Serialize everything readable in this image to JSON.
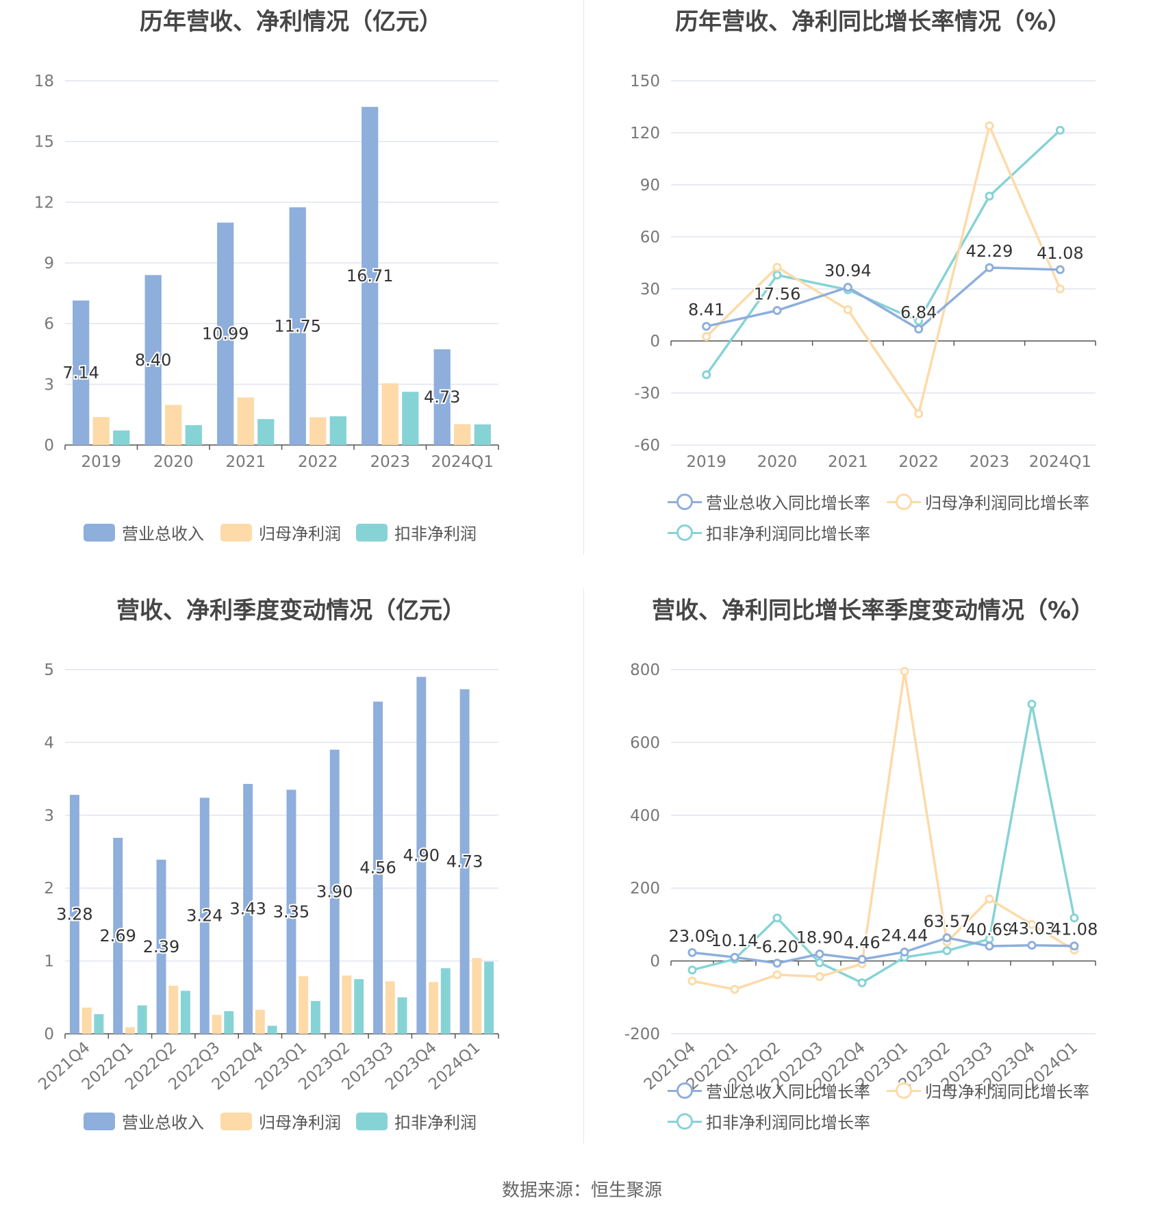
{
  "chart_data": [
    {
      "type": "bar",
      "title": "历年营收、净利情况（亿元）",
      "categories": [
        "2019",
        "2020",
        "2021",
        "2022",
        "2023",
        "2024Q1"
      ],
      "series": [
        {
          "name": "营业总收入",
          "color": "#8eaedc",
          "values": [
            7.14,
            8.4,
            10.99,
            11.75,
            16.71,
            4.73
          ],
          "labels": [
            "7.14",
            "8.40",
            "10.99",
            "11.75",
            "16.71",
            "4.73"
          ]
        },
        {
          "name": "归母净利润",
          "color": "#fddaa8",
          "values": [
            1.38,
            1.98,
            2.35,
            1.37,
            3.05,
            1.03
          ]
        },
        {
          "name": "扣非净利润",
          "color": "#86d3d6",
          "values": [
            0.72,
            0.98,
            1.28,
            1.42,
            2.63,
            1.02
          ]
        }
      ],
      "ylim": [
        0,
        18
      ],
      "yticks": [
        0,
        3,
        6,
        9,
        12,
        15,
        18
      ],
      "grid": true,
      "legend": "bottom"
    },
    {
      "type": "line",
      "title": "历年营收、净利同比增长率情况（%）",
      "categories": [
        "2019",
        "2020",
        "2021",
        "2022",
        "2023",
        "2024Q1"
      ],
      "series": [
        {
          "name": "营业总收入同比增长率",
          "color": "#8eaedc",
          "values": [
            8.41,
            17.56,
            30.94,
            6.84,
            42.29,
            41.08
          ],
          "labels": [
            "8.41",
            "17.56",
            "30.94",
            "6.84",
            "42.29",
            "41.08"
          ]
        },
        {
          "name": "归母净利润同比增长率",
          "color": "#fddaa8",
          "values": [
            2.5,
            42.5,
            18.0,
            -42.0,
            124.0,
            30.0
          ]
        },
        {
          "name": "扣非净利润同比增长率",
          "color": "#86d3d6",
          "values": [
            -19.5,
            38.0,
            29.5,
            11.5,
            83.5,
            121.5
          ]
        }
      ],
      "ylim": [
        -60,
        150
      ],
      "yticks": [
        -60,
        -30,
        0,
        30,
        60,
        90,
        120,
        150
      ],
      "grid": true,
      "legend": "bottom"
    },
    {
      "type": "bar",
      "title": "营收、净利季度变动情况（亿元）",
      "categories": [
        "2021Q4",
        "2022Q1",
        "2022Q2",
        "2022Q3",
        "2022Q4",
        "2023Q1",
        "2023Q2",
        "2023Q3",
        "2023Q4",
        "2024Q1"
      ],
      "series": [
        {
          "name": "营业总收入",
          "color": "#8eaedc",
          "values": [
            3.28,
            2.69,
            2.39,
            3.24,
            3.43,
            3.35,
            3.9,
            4.56,
            4.9,
            4.73
          ],
          "labels": [
            "3.28",
            "2.69",
            "2.39",
            "3.24",
            "3.43",
            "3.35",
            "3.90",
            "4.56",
            "4.90",
            "4.73"
          ]
        },
        {
          "name": "归母净利润",
          "color": "#fddaa8",
          "values": [
            0.36,
            0.09,
            0.66,
            0.26,
            0.33,
            0.79,
            0.8,
            0.72,
            0.71,
            1.04
          ]
        },
        {
          "name": "扣非净利润",
          "color": "#86d3d6",
          "values": [
            0.27,
            0.39,
            0.59,
            0.31,
            0.11,
            0.45,
            0.75,
            0.5,
            0.9,
            0.99
          ]
        }
      ],
      "ylim": [
        0,
        5
      ],
      "yticks": [
        0,
        1,
        2,
        3,
        4,
        5
      ],
      "grid": true,
      "legend": "bottom"
    },
    {
      "type": "line",
      "title": "营收、净利同比增长率季度变动情况（%）",
      "categories": [
        "2021Q4",
        "2022Q1",
        "2022Q2",
        "2022Q3",
        "2022Q4",
        "2023Q1",
        "2023Q2",
        "2023Q3",
        "2023Q4",
        "2024Q1"
      ],
      "series": [
        {
          "name": "营业总收入同比增长率",
          "color": "#8eaedc",
          "values": [
            23.09,
            10.14,
            -6.2,
            18.9,
            4.46,
            24.44,
            63.57,
            40.69,
            43.03,
            41.08
          ],
          "labels": [
            "23.09",
            "10.14",
            "-6.20",
            "18.90",
            "4.46",
            "24.44",
            "63.57",
            "40.69",
            "43.03",
            "41.08"
          ]
        },
        {
          "name": "归母净利润同比增长率",
          "color": "#fddaa8",
          "values": [
            -55,
            -78,
            -38,
            -43,
            -8,
            795,
            52,
            170,
            100,
            30
          ]
        },
        {
          "name": "扣非净利润同比增长率",
          "color": "#86d3d6",
          "values": [
            -25,
            5,
            118,
            -5,
            -60,
            10,
            28,
            60,
            705,
            118
          ]
        }
      ],
      "ylim": [
        -200,
        800
      ],
      "yticks": [
        -200,
        0,
        200,
        400,
        600,
        800
      ],
      "grid": true,
      "legend": "bottom"
    }
  ],
  "source": "数据来源：恒生聚源"
}
